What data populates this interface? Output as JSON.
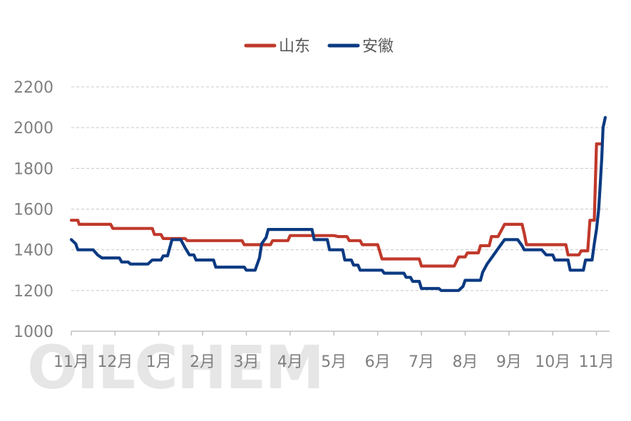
{
  "chart_data": {
    "type": "line",
    "title": "",
    "xlabel": "",
    "ylabel": "",
    "ylim": [
      1000,
      2200
    ],
    "yticks": [
      1000,
      1200,
      1400,
      1600,
      1800,
      2000,
      2200
    ],
    "grid": true,
    "legend": "top-center",
    "xlim": [
      0,
      12.3
    ],
    "x_tick_labels": [
      "11月",
      "12月",
      "1月",
      "2月",
      "3月",
      "4月",
      "5月",
      "6月",
      "7月",
      "8月",
      "9月",
      "10月",
      "11月"
    ],
    "series": [
      {
        "name": "山东",
        "color": "#c0392b",
        "points": [
          [
            0.0,
            1545
          ],
          [
            0.15,
            1545
          ],
          [
            0.18,
            1525
          ],
          [
            0.9,
            1525
          ],
          [
            0.95,
            1505
          ],
          [
            1.85,
            1505
          ],
          [
            1.9,
            1475
          ],
          [
            2.05,
            1475
          ],
          [
            2.1,
            1455
          ],
          [
            2.6,
            1455
          ],
          [
            2.65,
            1445
          ],
          [
            3.9,
            1445
          ],
          [
            3.95,
            1425
          ],
          [
            4.55,
            1425
          ],
          [
            4.6,
            1445
          ],
          [
            4.95,
            1445
          ],
          [
            5.0,
            1470
          ],
          [
            6.0,
            1470
          ],
          [
            6.1,
            1465
          ],
          [
            6.3,
            1465
          ],
          [
            6.35,
            1445
          ],
          [
            6.6,
            1445
          ],
          [
            6.65,
            1425
          ],
          [
            7.0,
            1425
          ],
          [
            7.1,
            1355
          ],
          [
            7.95,
            1355
          ],
          [
            8.0,
            1320
          ],
          [
            8.75,
            1320
          ],
          [
            8.85,
            1365
          ],
          [
            9.0,
            1365
          ],
          [
            9.05,
            1385
          ],
          [
            9.3,
            1385
          ],
          [
            9.35,
            1420
          ],
          [
            9.55,
            1420
          ],
          [
            9.6,
            1465
          ],
          [
            9.75,
            1465
          ],
          [
            9.85,
            1505
          ],
          [
            9.9,
            1525
          ],
          [
            10.3,
            1525
          ],
          [
            10.35,
            1480
          ],
          [
            10.4,
            1425
          ],
          [
            11.3,
            1425
          ],
          [
            11.35,
            1375
          ],
          [
            11.6,
            1375
          ],
          [
            11.65,
            1395
          ],
          [
            11.8,
            1395
          ],
          [
            11.85,
            1545
          ],
          [
            11.95,
            1545
          ],
          [
            12.0,
            1920
          ],
          [
            12.1,
            1920
          ]
        ]
      },
      {
        "name": "安徽",
        "color": "#0b3a82",
        "points": [
          [
            0.0,
            1450
          ],
          [
            0.1,
            1430
          ],
          [
            0.15,
            1400
          ],
          [
            0.5,
            1400
          ],
          [
            0.6,
            1375
          ],
          [
            0.7,
            1360
          ],
          [
            1.1,
            1360
          ],
          [
            1.15,
            1340
          ],
          [
            1.3,
            1340
          ],
          [
            1.35,
            1330
          ],
          [
            1.75,
            1330
          ],
          [
            1.85,
            1350
          ],
          [
            2.05,
            1350
          ],
          [
            2.1,
            1370
          ],
          [
            2.2,
            1370
          ],
          [
            2.3,
            1450
          ],
          [
            2.5,
            1450
          ],
          [
            2.6,
            1410
          ],
          [
            2.7,
            1375
          ],
          [
            2.8,
            1375
          ],
          [
            2.85,
            1350
          ],
          [
            3.25,
            1350
          ],
          [
            3.3,
            1315
          ],
          [
            3.95,
            1315
          ],
          [
            4.0,
            1300
          ],
          [
            4.2,
            1300
          ],
          [
            4.3,
            1360
          ],
          [
            4.35,
            1430
          ],
          [
            4.45,
            1460
          ],
          [
            4.5,
            1500
          ],
          [
            5.5,
            1500
          ],
          [
            5.55,
            1450
          ],
          [
            5.85,
            1450
          ],
          [
            5.9,
            1400
          ],
          [
            6.2,
            1400
          ],
          [
            6.25,
            1350
          ],
          [
            6.4,
            1350
          ],
          [
            6.45,
            1325
          ],
          [
            6.55,
            1325
          ],
          [
            6.6,
            1300
          ],
          [
            7.1,
            1300
          ],
          [
            7.15,
            1285
          ],
          [
            7.6,
            1285
          ],
          [
            7.65,
            1265
          ],
          [
            7.75,
            1265
          ],
          [
            7.8,
            1245
          ],
          [
            7.95,
            1245
          ],
          [
            8.0,
            1210
          ],
          [
            8.4,
            1210
          ],
          [
            8.45,
            1200
          ],
          [
            8.85,
            1200
          ],
          [
            8.95,
            1220
          ],
          [
            9.0,
            1250
          ],
          [
            9.35,
            1250
          ],
          [
            9.4,
            1290
          ],
          [
            9.5,
            1330
          ],
          [
            9.6,
            1360
          ],
          [
            9.7,
            1390
          ],
          [
            9.8,
            1420
          ],
          [
            9.9,
            1450
          ],
          [
            10.2,
            1450
          ],
          [
            10.3,
            1420
          ],
          [
            10.35,
            1400
          ],
          [
            10.75,
            1400
          ],
          [
            10.85,
            1375
          ],
          [
            11.0,
            1375
          ],
          [
            11.05,
            1350
          ],
          [
            11.35,
            1350
          ],
          [
            11.4,
            1300
          ],
          [
            11.7,
            1300
          ],
          [
            11.75,
            1350
          ],
          [
            11.9,
            1350
          ],
          [
            11.95,
            1430
          ],
          [
            12.0,
            1500
          ],
          [
            12.05,
            1600
          ],
          [
            12.08,
            1700
          ],
          [
            12.12,
            1850
          ],
          [
            12.15,
            2000
          ],
          [
            12.2,
            2050
          ]
        ]
      }
    ]
  },
  "watermark": "OILCHEM"
}
